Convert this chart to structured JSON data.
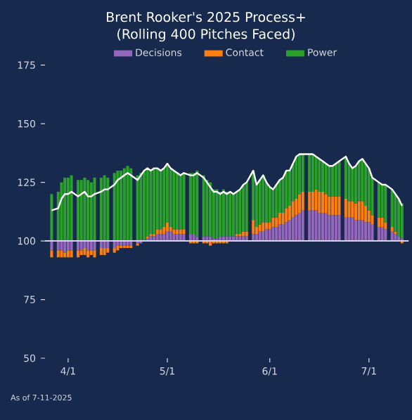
{
  "chart_data": {
    "type": "bar",
    "title": "Brent Rooker's 2025 Process+",
    "subtitle": "(Rolling 400 Pitches Faced)",
    "legend": "top",
    "xlim": [
      "2025-03-25",
      "2025-07-13"
    ],
    "xticks": [
      {
        "value": "2025-04-01",
        "label": "4/1"
      },
      {
        "value": "2025-05-01",
        "label": "5/1"
      },
      {
        "value": "2025-06-01",
        "label": "6/1"
      },
      {
        "value": "2025-07-01",
        "label": "7/1"
      }
    ],
    "ylim": [
      50,
      180
    ],
    "yticks": [
      50,
      75,
      100,
      125,
      150,
      175
    ],
    "x": [
      "2025-03-27",
      "2025-03-29",
      "2025-03-30",
      "2025-03-31",
      "2025-04-01",
      "2025-04-02",
      "2025-04-04",
      "2025-04-05",
      "2025-04-06",
      "2025-04-07",
      "2025-04-08",
      "2025-04-09",
      "2025-04-11",
      "2025-04-12",
      "2025-04-13",
      "2025-04-15",
      "2025-04-16",
      "2025-04-17",
      "2025-04-18",
      "2025-04-19",
      "2025-04-20",
      "2025-04-22",
      "2025-04-23",
      "2025-04-24",
      "2025-04-25",
      "2025-04-26",
      "2025-04-27",
      "2025-04-28",
      "2025-04-29",
      "2025-04-30",
      "2025-05-01",
      "2025-05-02",
      "2025-05-03",
      "2025-05-04",
      "2025-05-05",
      "2025-05-06",
      "2025-05-08",
      "2025-05-09",
      "2025-05-10",
      "2025-05-12",
      "2025-05-13",
      "2025-05-14",
      "2025-05-15",
      "2025-05-16",
      "2025-05-17",
      "2025-05-18",
      "2025-05-19",
      "2025-05-20",
      "2025-05-21",
      "2025-05-22",
      "2025-05-23",
      "2025-05-24",
      "2025-05-25",
      "2025-05-27",
      "2025-05-28",
      "2025-05-29",
      "2025-05-30",
      "2025-05-31",
      "2025-06-01",
      "2025-06-02",
      "2025-06-03",
      "2025-06-04",
      "2025-06-05",
      "2025-06-06",
      "2025-06-07",
      "2025-06-08",
      "2025-06-09",
      "2025-06-10",
      "2025-06-11",
      "2025-06-13",
      "2025-06-14",
      "2025-06-15",
      "2025-06-16",
      "2025-06-17",
      "2025-06-18",
      "2025-06-19",
      "2025-06-20",
      "2025-06-21",
      "2025-06-22",
      "2025-06-24",
      "2025-06-25",
      "2025-06-26",
      "2025-06-27",
      "2025-06-28",
      "2025-06-29",
      "2025-06-30",
      "2025-07-01",
      "2025-07-02",
      "2025-07-04",
      "2025-07-05",
      "2025-07-06",
      "2025-07-08",
      "2025-07-09",
      "2025-07-10",
      "2025-07-11"
    ],
    "series": [
      {
        "name": "Decisions",
        "color": "#9467bd",
        "base": [
          100,
          100,
          100,
          100,
          100,
          100,
          100,
          100,
          100,
          100,
          100,
          100,
          100,
          100,
          100,
          100,
          100,
          100,
          100,
          100,
          100,
          100,
          100,
          null,
          100,
          100,
          100,
          100,
          100,
          100,
          100,
          100,
          100,
          100,
          100,
          100,
          100,
          100,
          100,
          100,
          100,
          100,
          100,
          100,
          100,
          100,
          100,
          100,
          100,
          100,
          100,
          100,
          100,
          100,
          100,
          100,
          100,
          100,
          100,
          100,
          100,
          100,
          100,
          100,
          100,
          100,
          100,
          100,
          100,
          100,
          100,
          100,
          100,
          100,
          100,
          100,
          100,
          100,
          100,
          100,
          100,
          100,
          100,
          100,
          100,
          100,
          100,
          100,
          100,
          100,
          100,
          100,
          100,
          100,
          100
        ],
        "values": [
          -4,
          -4,
          -4,
          -5,
          -4,
          -4,
          -4,
          -4,
          -3,
          -4,
          -4,
          -4,
          -3,
          -3,
          -3,
          -3,
          -2,
          -2,
          -2,
          -2,
          -2,
          -1,
          -1,
          0,
          1,
          2,
          2,
          3,
          3,
          3,
          4,
          4,
          3,
          3,
          3,
          3,
          3,
          3,
          2,
          2,
          2,
          2,
          1,
          1,
          2,
          2,
          2,
          2,
          2,
          2,
          2,
          2,
          2,
          3,
          3,
          4,
          4,
          5,
          5,
          6,
          6,
          7,
          7,
          8,
          9,
          10,
          11,
          12,
          13,
          13,
          13,
          13,
          12,
          12,
          12,
          11,
          11,
          11,
          11,
          10,
          10,
          10,
          9,
          9,
          9,
          8,
          8,
          7,
          6,
          6,
          5,
          4,
          3,
          2,
          1
        ]
      },
      {
        "name": "Contact",
        "color": "#ff7f0e",
        "base": [
          96,
          96,
          96,
          95,
          96,
          96,
          96,
          96,
          97,
          96,
          96,
          96,
          97,
          97,
          97,
          97,
          98,
          98,
          98,
          98,
          98,
          99,
          null,
          null,
          101,
          102,
          102,
          103,
          103,
          103,
          104,
          104,
          103,
          103,
          103,
          103,
          100,
          100,
          100,
          100,
          100,
          100,
          100,
          100,
          100,
          100,
          100,
          null,
          null,
          102,
          102,
          102,
          102,
          103,
          103,
          104,
          104,
          105,
          105,
          106,
          106,
          107,
          107,
          108,
          109,
          110,
          111,
          112,
          113,
          113,
          113,
          113,
          112,
          112,
          112,
          111,
          111,
          111,
          111,
          110,
          110,
          110,
          109,
          109,
          109,
          108,
          108,
          107,
          106,
          106,
          105,
          104,
          103,
          null,
          100
        ],
        "values": [
          -3,
          -3,
          -3,
          -2,
          -3,
          -3,
          -3,
          -2,
          -3,
          -3,
          -2,
          -3,
          -3,
          -3,
          -2,
          -2,
          -2,
          -1,
          -1,
          -1,
          -1,
          -1,
          0,
          0,
          1,
          1,
          1,
          2,
          2,
          3,
          4,
          2,
          2,
          2,
          2,
          2,
          -1,
          -1,
          -1,
          -1,
          -1,
          -2,
          -1,
          -1,
          -1,
          -1,
          -1,
          0,
          0,
          1,
          1,
          2,
          2,
          6,
          3,
          3,
          4,
          3,
          3,
          4,
          4,
          5,
          5,
          6,
          6,
          7,
          7,
          8,
          8,
          8,
          8,
          9,
          9,
          9,
          8,
          8,
          8,
          8,
          8,
          8,
          7,
          7,
          7,
          8,
          8,
          7,
          5,
          4,
          4,
          4,
          3,
          2,
          1,
          0,
          -1
        ]
      },
      {
        "name": "Power",
        "color": "#2ca02c",
        "base": [
          100,
          100,
          100,
          100,
          100,
          100,
          100,
          100,
          100,
          100,
          100,
          100,
          100,
          100,
          100,
          100,
          100,
          100,
          100,
          100,
          100,
          100,
          100,
          100,
          102,
          103,
          103,
          105,
          105,
          106,
          108,
          106,
          105,
          105,
          105,
          105,
          103,
          103,
          102,
          102,
          102,
          102,
          101,
          101,
          102,
          102,
          102,
          102,
          102,
          103,
          103,
          104,
          104,
          109,
          106,
          107,
          108,
          108,
          108,
          110,
          110,
          112,
          112,
          114,
          115,
          117,
          118,
          120,
          121,
          121,
          121,
          122,
          121,
          121,
          120,
          119,
          119,
          119,
          119,
          118,
          117,
          117,
          116,
          117,
          117,
          115,
          113,
          111,
          110,
          110,
          108,
          106,
          104,
          102,
          101
        ],
        "values": [
          20,
          21,
          25,
          27,
          27,
          28,
          26,
          26,
          27,
          26,
          25,
          27,
          27,
          28,
          27,
          29,
          30,
          30,
          31,
          32,
          31,
          28,
          29,
          30,
          29,
          27,
          28,
          26,
          25,
          25,
          25,
          25,
          25,
          24,
          23,
          24,
          26,
          26,
          28,
          26,
          24,
          23,
          21,
          21,
          19,
          20,
          19,
          19,
          18,
          18,
          19,
          20,
          21,
          21,
          18,
          19,
          20,
          17,
          15,
          12,
          14,
          14,
          15,
          16,
          15,
          16,
          18,
          17,
          16,
          16,
          16,
          14,
          14,
          13,
          13,
          13,
          13,
          14,
          15,
          18,
          16,
          14,
          16,
          17,
          18,
          18,
          18,
          16,
          15,
          14,
          16,
          16,
          16,
          16,
          15
        ]
      },
      {
        "type": "line",
        "color": "#ffffff",
        "values": [
          113,
          114,
          118,
          120,
          120,
          121,
          119,
          120,
          121,
          119,
          119,
          120,
          121,
          122,
          122,
          124,
          126,
          127,
          128,
          129,
          128,
          126,
          128,
          130,
          131,
          130,
          131,
          131,
          130,
          131,
          133,
          131,
          130,
          129,
          128,
          129,
          128,
          128,
          129,
          127,
          125,
          123,
          121,
          121,
          120,
          121,
          120,
          121,
          120,
          121,
          122,
          124,
          125,
          130,
          124,
          126,
          128,
          125,
          123,
          122,
          124,
          126,
          127,
          130,
          130,
          133,
          136,
          137,
          137,
          137,
          137,
          136,
          135,
          134,
          133,
          132,
          132,
          133,
          134,
          136,
          133,
          131,
          132,
          134,
          135,
          133,
          131,
          127,
          125,
          124,
          124,
          122,
          120,
          118,
          115
        ]
      }
    ],
    "ref_lines": [
      {
        "axis": "y",
        "value": 100,
        "color": "#d8d0f0"
      }
    ],
    "annotations": [
      "As of 7-11-2025"
    ]
  }
}
